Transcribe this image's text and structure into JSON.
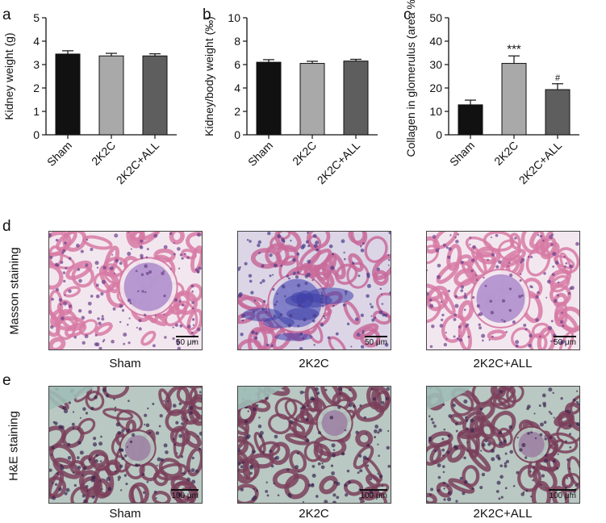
{
  "panels": {
    "a": "a",
    "b": "b",
    "c": "c",
    "d": "d",
    "e": "e"
  },
  "chart_data": [
    {
      "type": "bar",
      "categories": [
        "Sham",
        "2K2C",
        "2K2C+ALL"
      ],
      "values": [
        3.45,
        3.37,
        3.37
      ],
      "errors": [
        0.14,
        0.11,
        0.09
      ],
      "colors": [
        "#111111",
        "#a9a9a9",
        "#5e5e5e"
      ],
      "ylabel": "Kidney weight (g)",
      "ylim": [
        0,
        5
      ],
      "yticks": [
        "0",
        "1",
        "2",
        "3",
        "4",
        "5"
      ],
      "annotations": [
        "",
        "",
        ""
      ]
    },
    {
      "type": "bar",
      "categories": [
        "Sham",
        "2K2C",
        "2K2C+ALL"
      ],
      "values": [
        6.2,
        6.1,
        6.3
      ],
      "errors": [
        0.22,
        0.18,
        0.15
      ],
      "colors": [
        "#111111",
        "#a9a9a9",
        "#5e5e5e"
      ],
      "ylabel": "Kidney/body weight (‰)",
      "ylim": [
        0,
        10
      ],
      "yticks": [
        "0",
        "2",
        "4",
        "6",
        "8",
        "10"
      ],
      "annotations": [
        "",
        "",
        ""
      ]
    },
    {
      "type": "bar",
      "categories": [
        "Sham",
        "2K2C",
        "2K2C+ALL"
      ],
      "values": [
        12.8,
        30.5,
        19.3
      ],
      "errors": [
        2.0,
        3.2,
        2.5
      ],
      "colors": [
        "#111111",
        "#a9a9a9",
        "#5e5e5e"
      ],
      "ylabel": "Collagen in glomerulus (area %)",
      "ylim": [
        0,
        50
      ],
      "yticks": [
        "0",
        "10",
        "20",
        "30",
        "40",
        "50"
      ],
      "annotations": [
        "",
        "***",
        "#"
      ]
    }
  ],
  "micrographs": {
    "row_d_label": "Masson staining",
    "row_e_label": "H&E staining",
    "captions": [
      "Sham",
      "2K2C",
      "2K2C+ALL"
    ],
    "scale_d": "50 μm",
    "scale_e": "100 μm"
  }
}
